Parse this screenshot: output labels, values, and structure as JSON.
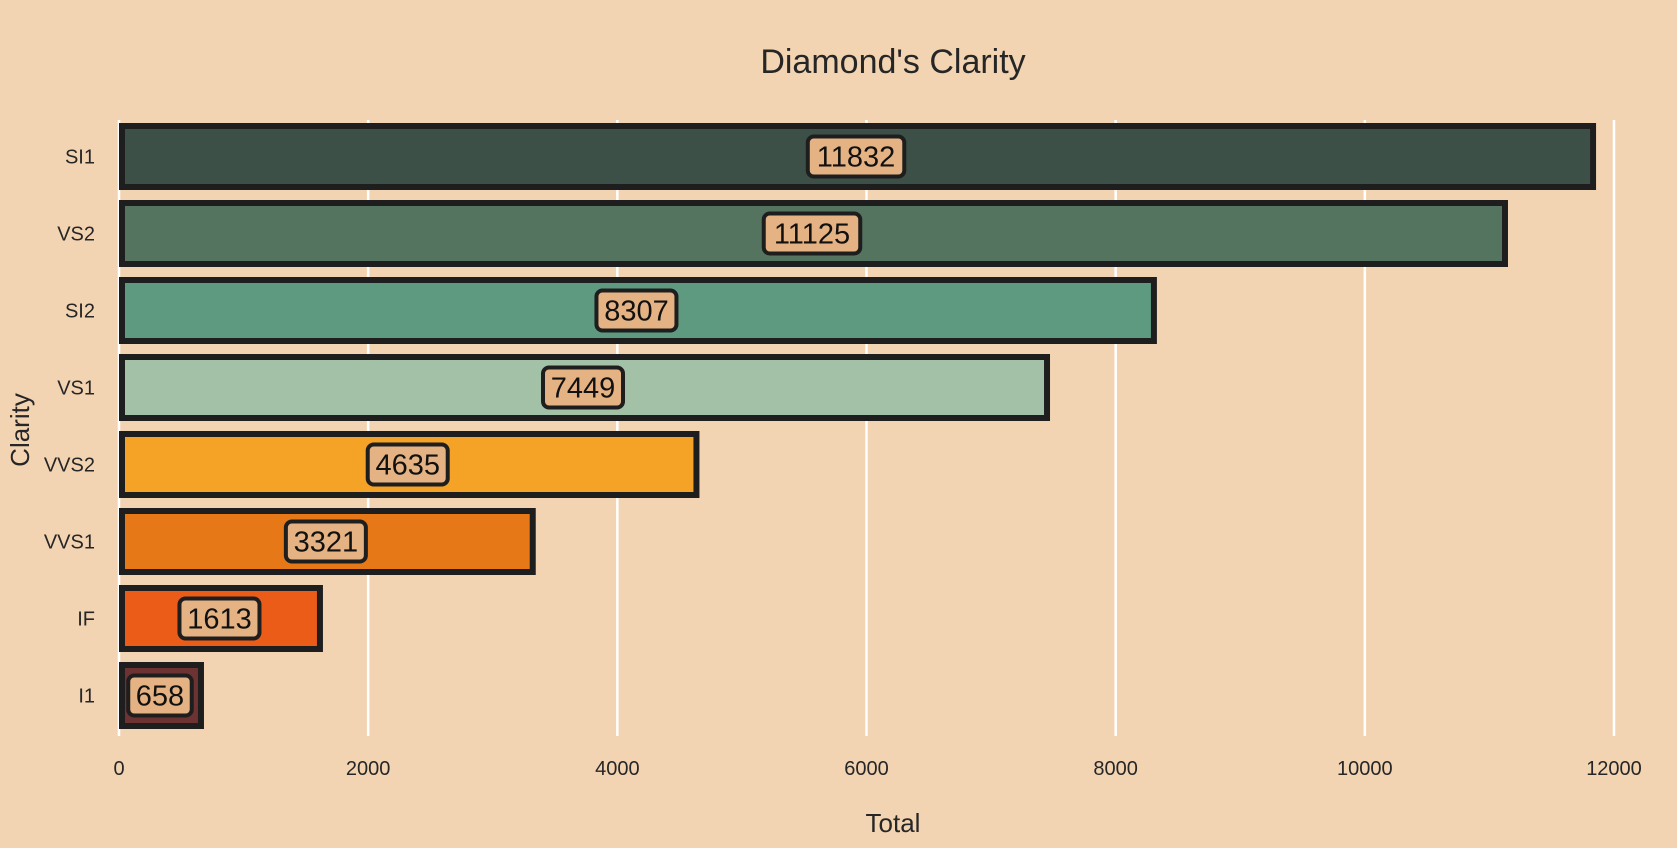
{
  "chart_data": {
    "type": "bar",
    "orientation": "horizontal",
    "title": "Diamond's Clarity",
    "xlabel": "Total",
    "ylabel": "Clarity",
    "categories": [
      "SI1",
      "VS2",
      "SI2",
      "VS1",
      "VVS2",
      "VVS1",
      "IF",
      "I1"
    ],
    "values": [
      11832,
      11125,
      8307,
      7449,
      4635,
      3321,
      1613,
      658
    ],
    "data_labels": [
      "11832",
      "11125",
      "8307",
      "7449",
      "4635",
      "3321",
      "1613",
      "658"
    ],
    "xlim": [
      0,
      12000
    ],
    "xticks": [
      0,
      2000,
      4000,
      6000,
      8000,
      10000,
      12000
    ],
    "xtick_labels": [
      "0",
      "2000",
      "4000",
      "6000",
      "8000",
      "10000",
      "12000"
    ],
    "grid": "vertical",
    "legend": "none",
    "colors": [
      "#3d5048",
      "#55745f",
      "#5e9a80",
      "#a3c1a6",
      "#f5a327",
      "#e77817",
      "#ec5c19",
      "#6d3232"
    ],
    "bar_edge_color": "#1e1e1e",
    "label_box_color": "#e4b283",
    "background": "#f3d4b2",
    "grid_color": "#ffffff"
  }
}
